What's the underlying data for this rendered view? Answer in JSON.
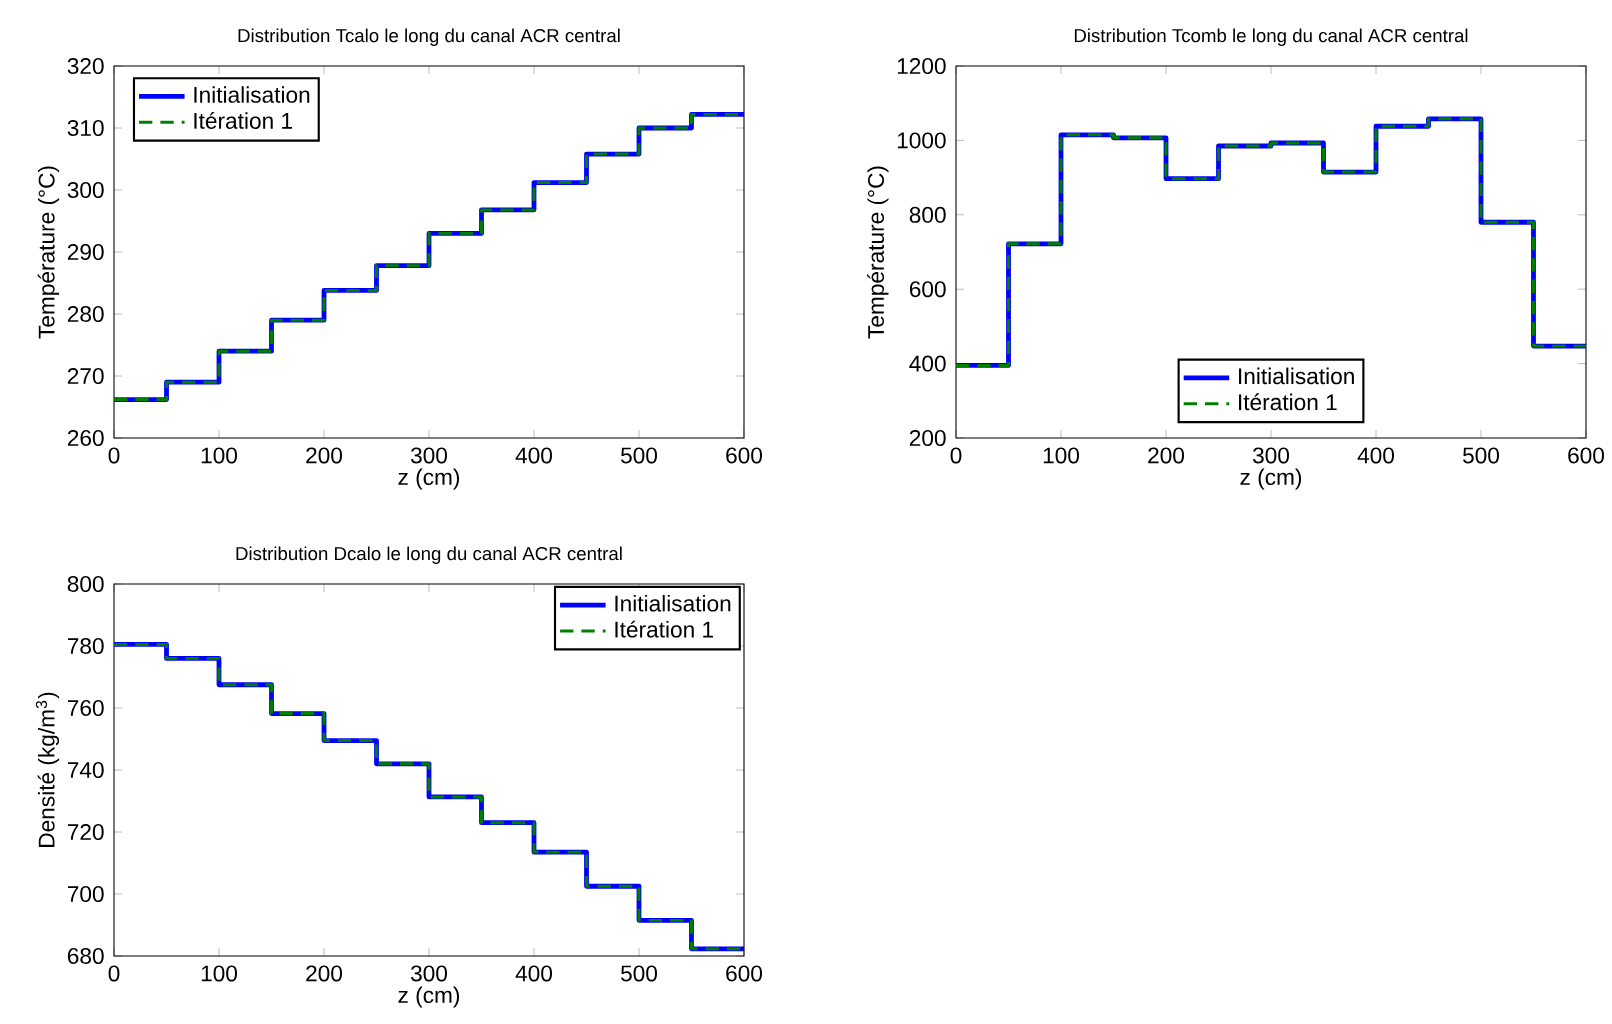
{
  "chart_data": [
    {
      "type": "step",
      "title": "Distribution Tcalo le long du canal ACR central",
      "xlabel": "z (cm)",
      "ylabel": "Température (°C)",
      "x": [
        0,
        50,
        100,
        150,
        200,
        250,
        300,
        350,
        400,
        450,
        500,
        550,
        600
      ],
      "series": [
        {
          "name": "Initialisation",
          "color": "#0000ff",
          "line_style": "solid",
          "values": [
            266.2,
            269,
            274,
            279,
            283.8,
            287.8,
            293,
            296.8,
            301.2,
            305.8,
            310,
            312.2,
            312.2
          ]
        },
        {
          "name": "Itération 1",
          "color": "#008000",
          "line_style": "dashed",
          "values": [
            266.2,
            269,
            274,
            279,
            283.8,
            287.8,
            293,
            296.8,
            301.2,
            305.8,
            310,
            312.2,
            312.2
          ]
        }
      ],
      "xlim": [
        0,
        600
      ],
      "ylim": [
        260,
        320
      ],
      "xticks": [
        0,
        100,
        200,
        300,
        400,
        500,
        600
      ],
      "yticks": [
        260,
        270,
        280,
        290,
        300,
        310,
        320
      ],
      "legend": "top left"
    },
    {
      "type": "step",
      "title": "Distribution Tcomb le long du canal ACR central",
      "xlabel": "z (cm)",
      "ylabel": "Température (°C)",
      "x": [
        0,
        50,
        100,
        150,
        200,
        250,
        300,
        350,
        400,
        450,
        500,
        550,
        600
      ],
      "series": [
        {
          "name": "Initialisation",
          "color": "#0000ff",
          "line_style": "solid",
          "values": [
            395,
            722,
            1015,
            1007,
            897,
            985,
            993,
            915,
            1038,
            1058,
            780,
            447,
            447
          ]
        },
        {
          "name": "Itération 1",
          "color": "#008000",
          "line_style": "dashed",
          "values": [
            395,
            722,
            1015,
            1007,
            897,
            985,
            993,
            915,
            1038,
            1058,
            780,
            447,
            447
          ]
        }
      ],
      "xlim": [
        0,
        600
      ],
      "ylim": [
        200,
        1200
      ],
      "xticks": [
        0,
        100,
        200,
        300,
        400,
        500,
        600
      ],
      "yticks": [
        200,
        400,
        600,
        800,
        1000,
        1200
      ],
      "legend": "bottom"
    },
    {
      "type": "step",
      "title": "Distribution Dcalo le long du canal ACR central",
      "xlabel": "z (cm)",
      "ylabel": "Densité (kg/m$^{3}$)",
      "x": [
        0,
        50,
        100,
        150,
        200,
        250,
        300,
        350,
        400,
        450,
        500,
        550,
        600
      ],
      "series": [
        {
          "name": "Initialisation",
          "color": "#0000ff",
          "line_style": "solid",
          "values": [
            780.5,
            776,
            767.5,
            758.2,
            749.5,
            742,
            731.3,
            723,
            713.5,
            702.5,
            691.5,
            682.3,
            682.3
          ]
        },
        {
          "name": "Itération 1",
          "color": "#008000",
          "line_style": "dashed",
          "values": [
            780.5,
            776,
            767.5,
            758.2,
            749.5,
            742,
            731.3,
            723,
            713.5,
            702.5,
            691.5,
            682.3,
            682.3
          ]
        }
      ],
      "xlim": [
        0,
        600
      ],
      "ylim": [
        680,
        800
      ],
      "xticks": [
        0,
        100,
        200,
        300,
        400,
        500,
        600
      ],
      "yticks": [
        680,
        700,
        720,
        740,
        760,
        780,
        800
      ],
      "legend": "top right"
    }
  ]
}
